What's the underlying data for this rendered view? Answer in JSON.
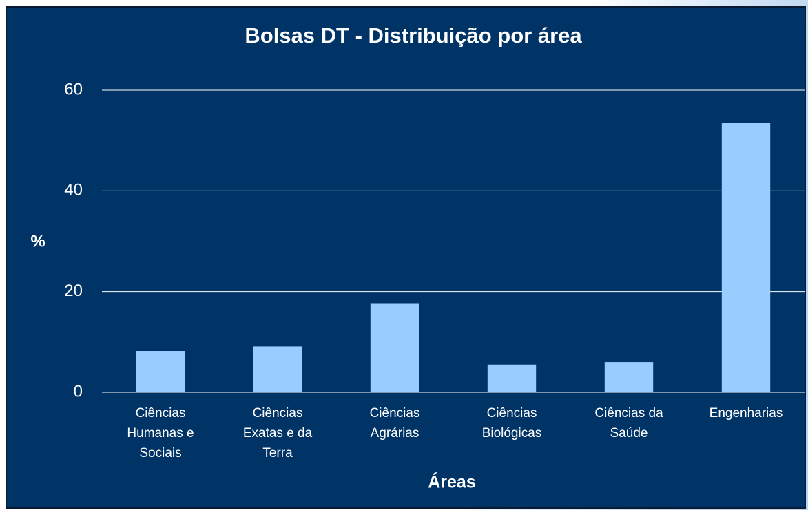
{
  "chart_data": {
    "type": "bar",
    "title": "Bolsas DT  - Distribuição por área",
    "x_label": "Áreas",
    "y_label": "%",
    "categories": [
      "Ciências Humanas e Sociais",
      "Ciências Exatas e da Terra",
      "Ciências Agrárias",
      "Ciências Biológicas",
      "Ciências da Saúde",
      "Engenharias"
    ],
    "values": [
      8.2,
      9.1,
      17.7,
      5.5,
      6.0,
      53.5
    ],
    "color": "#99ccff",
    "ylim": [
      0,
      60
    ],
    "yticks": [
      0,
      20,
      40,
      60
    ],
    "grid": true
  }
}
